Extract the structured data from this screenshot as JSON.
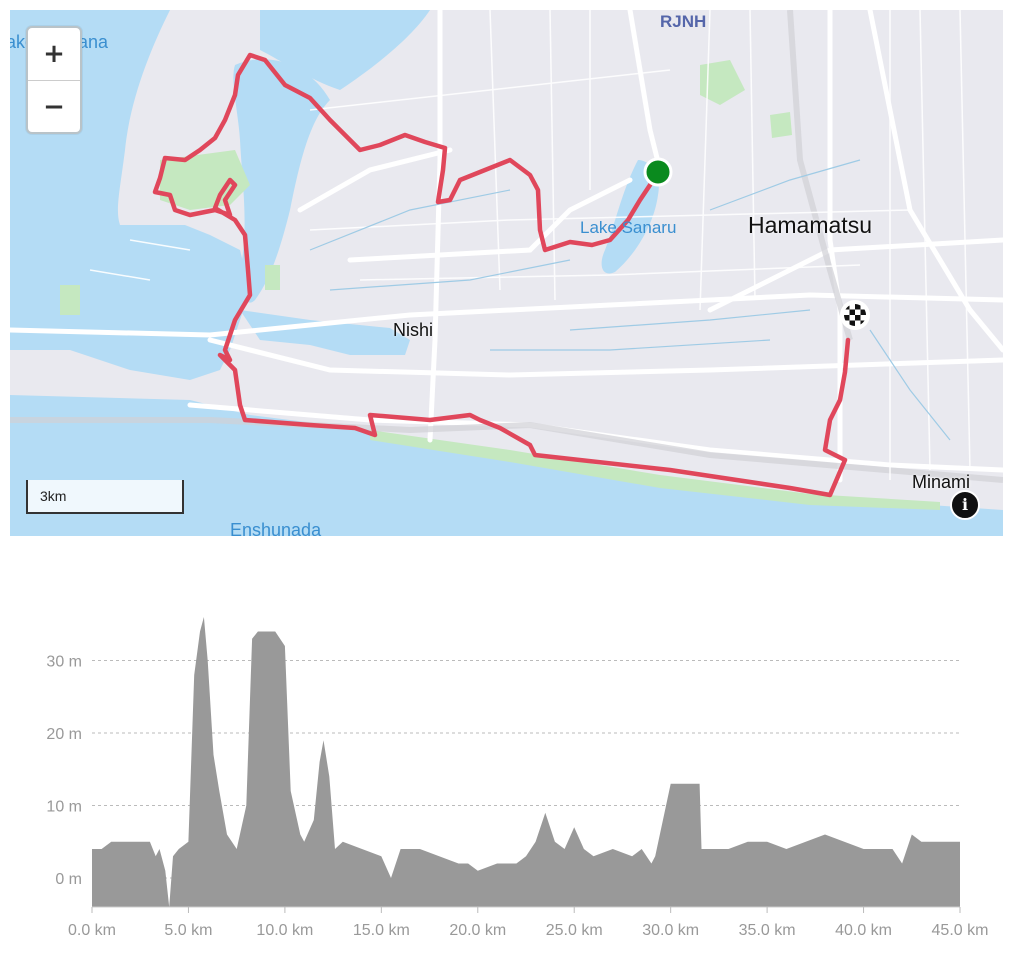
{
  "map": {
    "labels": [
      {
        "id": "rjnh",
        "text": "RJNH"
      },
      {
        "id": "lake-hamana",
        "text": "Lake Hamana"
      },
      {
        "id": "lake-sanaru",
        "text": "Lake Sanaru"
      },
      {
        "id": "hamamatsu",
        "text": "Hamamatsu"
      },
      {
        "id": "nishi",
        "text": "Nishi"
      },
      {
        "id": "minami",
        "text": "Minami"
      },
      {
        "id": "enshunada",
        "text": "Enshunada"
      }
    ],
    "zoom_in_label": "+",
    "zoom_out_label": "−",
    "scale_label": "3km",
    "info_label": "i",
    "colors": {
      "water": "#b4dcf5",
      "land": "#e9e9ef",
      "park": "#c5e8c0",
      "road": "#ffffff",
      "route": "#e0475b",
      "start": "#0a8a1e"
    }
  },
  "elevation": {
    "y_ticks": [
      "30 m",
      "20 m",
      "10 m",
      "0 m"
    ],
    "x_ticks": [
      "0.0 km",
      "5.0 km",
      "10.0 km",
      "15.0 km",
      "20.0 km",
      "25.0 km",
      "30.0 km",
      "35.0 km",
      "40.0 km",
      "45.0 km"
    ],
    "fill_color": "#999999"
  },
  "chart_data": {
    "type": "area",
    "xlabel": "",
    "ylabel": "",
    "xlim": [
      0,
      45
    ],
    "ylim": [
      -4,
      38
    ],
    "x": [
      0,
      0.5,
      1,
      2,
      3,
      3.3,
      3.5,
      3.8,
      4,
      4.2,
      4.5,
      5,
      5.3,
      5.6,
      5.8,
      6,
      6.3,
      6.6,
      7,
      7.5,
      8,
      8.3,
      8.6,
      9,
      9.5,
      10,
      10.3,
      10.8,
      11,
      11.5,
      11.8,
      12,
      12.3,
      12.6,
      13,
      14,
      15,
      15.5,
      16,
      17,
      18,
      19,
      19.5,
      20,
      21,
      22,
      22.5,
      23,
      23.5,
      24,
      24.5,
      25,
      25.5,
      26,
      27,
      28,
      28.5,
      29,
      29.2,
      30,
      31,
      31.5,
      31.6,
      32,
      33,
      34,
      35,
      36,
      37,
      38,
      39,
      40,
      40.5,
      41,
      41.5,
      42,
      42.5,
      43,
      44,
      45
    ],
    "y": [
      4,
      4,
      5,
      5,
      5,
      3,
      4,
      1,
      -4,
      3,
      4,
      5,
      28,
      34,
      36,
      30,
      17,
      12,
      6,
      4,
      10,
      33,
      34,
      34,
      34,
      32,
      12,
      6,
      5,
      8,
      16,
      19,
      14,
      4,
      5,
      4,
      3,
      0,
      4,
      4,
      3,
      2,
      2,
      1,
      2,
      2,
      3,
      5,
      9,
      5,
      4,
      7,
      4,
      3,
      4,
      3,
      4,
      2,
      3,
      13,
      13,
      13,
      4,
      4,
      4,
      5,
      5,
      4,
      5,
      6,
      5,
      4,
      4,
      4,
      4,
      2,
      6,
      5,
      5,
      5
    ]
  }
}
